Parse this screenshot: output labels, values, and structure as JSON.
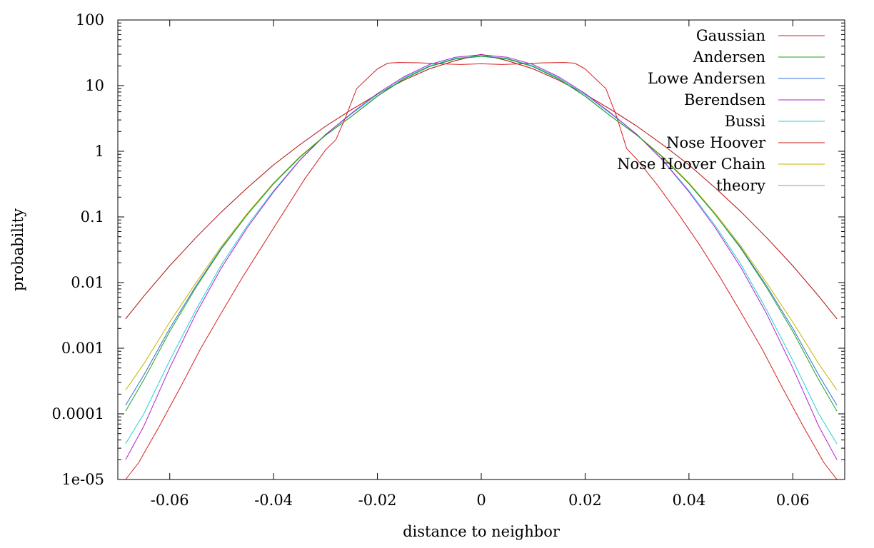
{
  "chart_data": {
    "type": "line",
    "title": "",
    "xlabel": "distance to neighbor",
    "ylabel": "probability",
    "xlim": [
      -0.07,
      0.07
    ],
    "ylim": [
      1e-05,
      100
    ],
    "yscale": "log",
    "grid": false,
    "legend_position": "top-right",
    "x_ticks": [
      {
        "value": -0.06,
        "label": "-0.06"
      },
      {
        "value": -0.04,
        "label": "-0.04"
      },
      {
        "value": -0.02,
        "label": "-0.02"
      },
      {
        "value": 0,
        "label": "0"
      },
      {
        "value": 0.02,
        "label": "0.02"
      },
      {
        "value": 0.04,
        "label": "0.04"
      },
      {
        "value": 0.06,
        "label": "0.06"
      }
    ],
    "y_ticks": [
      {
        "value": 100,
        "label": "100"
      },
      {
        "value": 10,
        "label": "10"
      },
      {
        "value": 1,
        "label": "1"
      },
      {
        "value": 0.1,
        "label": "0.1"
      },
      {
        "value": 0.01,
        "label": "0.01"
      },
      {
        "value": 0.001,
        "label": "0.001"
      },
      {
        "value": 0.0001,
        "label": "0.0001"
      },
      {
        "value": 1e-05,
        "label": "1e-05"
      }
    ],
    "series": [
      {
        "name": "Gaussian",
        "color": "#d62020",
        "x": [
          -0.0685,
          -0.066,
          -0.062,
          -0.058,
          -0.054,
          -0.05,
          -0.046,
          -0.042,
          -0.038,
          -0.034,
          -0.03,
          -0.028,
          -0.026,
          -0.024,
          -0.02,
          -0.018,
          -0.016,
          -0.012,
          -0.008,
          -0.004,
          0,
          0.004,
          0.008,
          0.012,
          0.016,
          0.018,
          0.02,
          0.024,
          0.026,
          0.028,
          0.03,
          0.034,
          0.038,
          0.042,
          0.046,
          0.05,
          0.054,
          0.058,
          0.062,
          0.066,
          0.0685
        ],
        "y": [
          1e-05,
          1.8e-05,
          6.5e-05,
          0.00025,
          0.001,
          0.0035,
          0.012,
          0.038,
          0.12,
          0.38,
          1.05,
          1.5,
          3.5,
          9,
          18,
          22,
          22.5,
          22.3,
          21.5,
          21,
          21.5,
          21,
          21.5,
          22.3,
          22.5,
          22,
          18,
          9,
          3.5,
          1.1,
          0.75,
          0.3,
          0.11,
          0.038,
          0.012,
          0.0035,
          0.001,
          0.00025,
          6.5e-05,
          1.8e-05,
          1e-05
        ]
      },
      {
        "name": "Andersen",
        "color": "#1fa21f",
        "x": [
          -0.0685,
          -0.065,
          -0.06,
          -0.055,
          -0.05,
          -0.045,
          -0.04,
          -0.035,
          -0.03,
          -0.025,
          -0.02,
          -0.015,
          -0.01,
          -0.005,
          0,
          0.005,
          0.01,
          0.015,
          0.02,
          0.025,
          0.03,
          0.035,
          0.04,
          0.045,
          0.05,
          0.055,
          0.06,
          0.065,
          0.0685
        ],
        "y": [
          0.00011,
          0.00033,
          0.0018,
          0.0083,
          0.033,
          0.11,
          0.32,
          0.8,
          1.75,
          3.4,
          6.9,
          12.5,
          19.5,
          25.5,
          28,
          25.5,
          19.5,
          12.5,
          6.9,
          3.4,
          1.75,
          0.8,
          0.32,
          0.11,
          0.033,
          0.0083,
          0.0018,
          0.00033,
          0.00011
        ]
      },
      {
        "name": "Lowe Andersen",
        "color": "#2a6fd8",
        "x": [
          -0.0685,
          -0.065,
          -0.06,
          -0.055,
          -0.05,
          -0.045,
          -0.04,
          -0.035,
          -0.03,
          -0.025,
          -0.02,
          -0.015,
          -0.01,
          -0.005,
          0,
          0.005,
          0.01,
          0.015,
          0.02,
          0.025,
          0.03,
          0.035,
          0.04,
          0.045,
          0.05,
          0.055,
          0.06,
          0.065,
          0.0685
        ],
        "y": [
          0.000135,
          0.00039,
          0.002,
          0.0088,
          0.034,
          0.11,
          0.32,
          0.8,
          1.75,
          3.4,
          6.9,
          12.5,
          19.5,
          25.5,
          28,
          25.5,
          19.5,
          12.5,
          6.9,
          3.4,
          1.75,
          0.8,
          0.32,
          0.11,
          0.034,
          0.0088,
          0.002,
          0.00039,
          0.000135
        ]
      },
      {
        "name": "Berendsen",
        "color": "#b020d0",
        "x": [
          -0.0685,
          -0.065,
          -0.06,
          -0.055,
          -0.05,
          -0.045,
          -0.04,
          -0.035,
          -0.03,
          -0.025,
          -0.02,
          -0.015,
          -0.01,
          -0.005,
          0,
          0.005,
          0.01,
          0.015,
          0.02,
          0.025,
          0.03,
          0.035,
          0.04,
          0.045,
          0.05,
          0.055,
          0.06,
          0.065,
          0.0685
        ],
        "y": [
          2e-05,
          6.5e-05,
          0.0005,
          0.0033,
          0.017,
          0.07,
          0.24,
          0.72,
          1.8,
          3.8,
          7.6,
          13.5,
          21,
          27,
          29.5,
          27,
          21,
          13.5,
          7.6,
          3.8,
          1.8,
          0.72,
          0.24,
          0.07,
          0.017,
          0.0033,
          0.0005,
          6.5e-05,
          2e-05
        ]
      },
      {
        "name": "Bussi",
        "color": "#20d0d8",
        "x": [
          -0.0685,
          -0.065,
          -0.06,
          -0.055,
          -0.05,
          -0.045,
          -0.04,
          -0.035,
          -0.03,
          -0.025,
          -0.02,
          -0.015,
          -0.01,
          -0.005,
          0,
          0.005,
          0.01,
          0.015,
          0.02,
          0.025,
          0.03,
          0.035,
          0.04,
          0.045,
          0.05,
          0.055,
          0.06,
          0.065,
          0.0685
        ],
        "y": [
          3.5e-05,
          0.0001,
          0.00065,
          0.0038,
          0.019,
          0.075,
          0.25,
          0.73,
          1.8,
          3.7,
          7.3,
          13,
          20,
          26,
          28.5,
          26,
          20,
          13,
          7.3,
          3.7,
          1.8,
          0.73,
          0.25,
          0.075,
          0.019,
          0.0038,
          0.00065,
          0.0001,
          3.5e-05
        ]
      },
      {
        "name": "Nose Hoover",
        "color": "#c01818",
        "x": [
          -0.0685,
          -0.065,
          -0.06,
          -0.055,
          -0.05,
          -0.045,
          -0.04,
          -0.035,
          -0.03,
          -0.025,
          -0.02,
          -0.015,
          -0.01,
          -0.005,
          0,
          0.005,
          0.01,
          0.015,
          0.02,
          0.025,
          0.03,
          0.035,
          0.04,
          0.045,
          0.05,
          0.055,
          0.06,
          0.065,
          0.0685
        ],
        "y": [
          0.0028,
          0.0062,
          0.018,
          0.048,
          0.12,
          0.28,
          0.62,
          1.25,
          2.4,
          4.3,
          7.4,
          12,
          18,
          24,
          30,
          24,
          18,
          12,
          7.4,
          4.3,
          2.4,
          1.25,
          0.62,
          0.28,
          0.12,
          0.048,
          0.018,
          0.0062,
          0.0028
        ]
      },
      {
        "name": "Nose Hoover Chain",
        "color": "#c8b400",
        "x": [
          -0.0685,
          -0.065,
          -0.06,
          -0.055,
          -0.05,
          -0.045,
          -0.04,
          -0.035,
          -0.03,
          -0.025,
          -0.02,
          -0.015,
          -0.01,
          -0.005,
          0,
          0.005,
          0.01,
          0.015,
          0.02,
          0.025,
          0.03,
          0.035,
          0.04,
          0.045,
          0.05,
          0.055,
          0.06,
          0.065,
          0.0685
        ],
        "y": [
          0.00023,
          0.00058,
          0.0025,
          0.0098,
          0.036,
          0.115,
          0.33,
          0.82,
          1.78,
          3.4,
          6.9,
          12.5,
          19.5,
          25.5,
          28,
          25.5,
          19.5,
          12.5,
          6.9,
          3.4,
          1.78,
          0.82,
          0.33,
          0.115,
          0.036,
          0.0098,
          0.0025,
          0.00058,
          0.00023
        ]
      },
      {
        "name": "theory",
        "color": "#9a9a9a",
        "x": [
          -0.0685,
          -0.065,
          -0.06,
          -0.055,
          -0.05,
          -0.045,
          -0.04,
          -0.035,
          -0.03,
          -0.025,
          -0.02,
          -0.015,
          -0.01,
          -0.005,
          0,
          0.005,
          0.01,
          0.015,
          0.02,
          0.025,
          0.03,
          0.035,
          0.04,
          0.045,
          0.05,
          0.055,
          0.06,
          0.065,
          0.0685
        ],
        "y": [
          0.0028,
          0.0062,
          0.018,
          0.048,
          0.12,
          0.28,
          0.62,
          1.25,
          2.4,
          4.3,
          7.4,
          12,
          18,
          24,
          30,
          24,
          18,
          12,
          7.4,
          4.3,
          2.4,
          1.25,
          0.62,
          0.28,
          0.12,
          0.048,
          0.018,
          0.0062,
          0.0028
        ]
      }
    ]
  }
}
